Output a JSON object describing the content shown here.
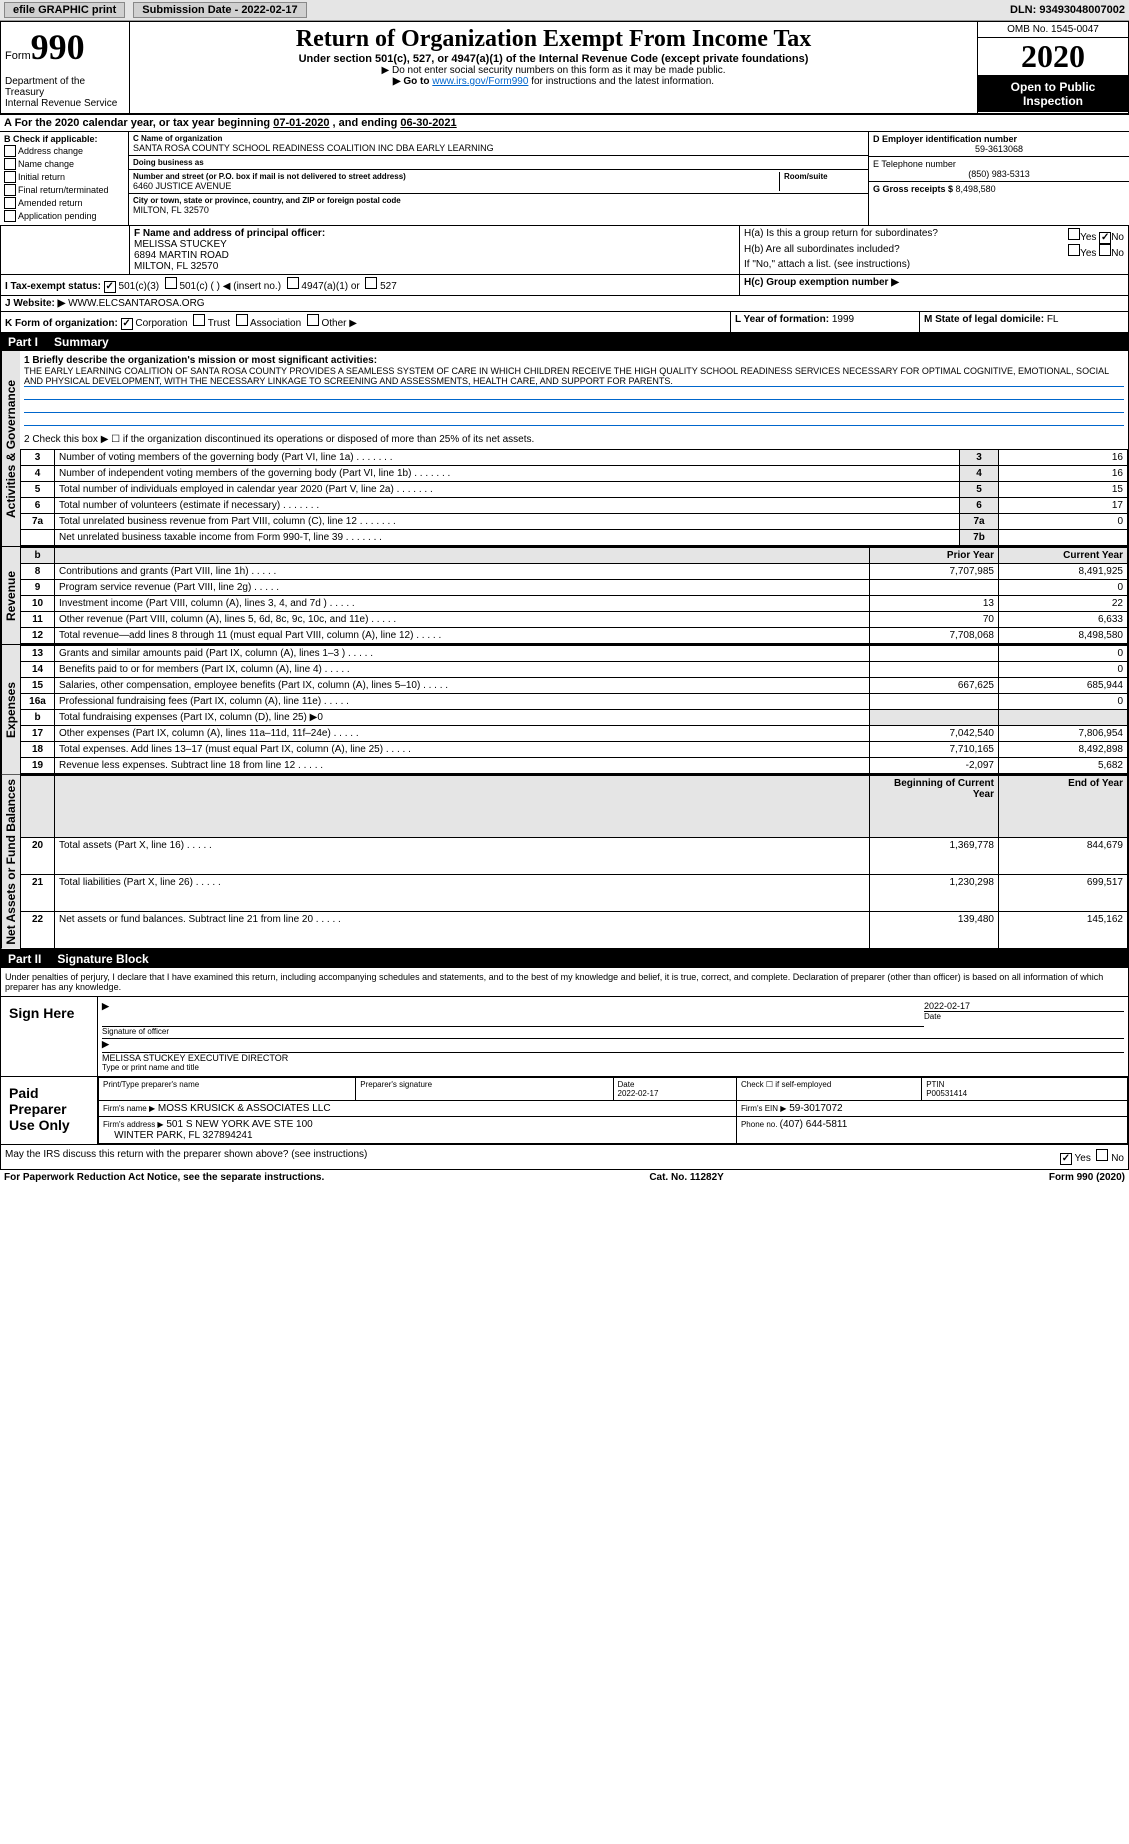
{
  "topbar": {
    "efile_label": "efile GRAPHIC print",
    "submission_label": "Submission Date - 2022-02-17",
    "dln": "DLN: 93493048007002"
  },
  "header": {
    "form_prefix": "Form",
    "form_num": "990",
    "title": "Return of Organization Exempt From Income Tax",
    "subtitle": "Under section 501(c), 527, or 4947(a)(1) of the Internal Revenue Code (except private foundations)",
    "note1": "▶ Do not enter social security numbers on this form as it may be made public.",
    "note2_pre": "▶ Go to ",
    "note2_link": "www.irs.gov/Form990",
    "note2_post": " for instructions and the latest information.",
    "dept": "Department of the Treasury\nInternal Revenue Service",
    "omb": "OMB No. 1545-0047",
    "year": "2020",
    "open_public": "Open to Public Inspection"
  },
  "period": {
    "label_a": "A For the 2020 calendar year, or tax year beginning ",
    "begin": "07-01-2020",
    "mid": " , and ending ",
    "end": "06-30-2021"
  },
  "section_b": {
    "header": "B Check if applicable:",
    "items": [
      "Address change",
      "Name change",
      "Initial return",
      "Final return/terminated",
      "Amended return",
      "Application pending"
    ]
  },
  "section_c": {
    "name_label": "C Name of organization",
    "name": "SANTA ROSA COUNTY SCHOOL READINESS COALITION INC DBA EARLY LEARNING",
    "dba_label": "Doing business as",
    "addr_label": "Number and street (or P.O. box if mail is not delivered to street address)",
    "addr": "6460 JUSTICE AVENUE",
    "room_label": "Room/suite",
    "city_label": "City or town, state or province, country, and ZIP or foreign postal code",
    "city": "MILTON, FL  32570"
  },
  "section_d": {
    "label": "D Employer identification number",
    "value": "59-3613068"
  },
  "section_e": {
    "label": "E Telephone number",
    "value": "(850) 983-5313"
  },
  "section_g": {
    "label": "G Gross receipts $ ",
    "value": "8,498,580"
  },
  "section_f": {
    "label": "F Name and address of principal officer:",
    "name": "MELISSA STUCKEY",
    "addr1": "6894 MARTIN ROAD",
    "addr2": "MILTON, FL  32570"
  },
  "section_h": {
    "ha_label": "H(a) Is this a group return for subordinates?",
    "hb_label": "H(b) Are all subordinates included?",
    "hb_note": "If \"No,\" attach a list. (see instructions)",
    "hc_label": "H(c) Group exemption number ▶",
    "yes": "Yes",
    "no": "No"
  },
  "section_i": {
    "label": "I Tax-exempt status:",
    "opts": [
      "501(c)(3)",
      "501(c) (  ) ◀ (insert no.)",
      "4947(a)(1) or",
      "527"
    ]
  },
  "section_j": {
    "label": "J Website: ▶",
    "value": "WWW.ELCSANTAROSA.ORG"
  },
  "section_k": {
    "label": "K Form of organization:",
    "opts": [
      "Corporation",
      "Trust",
      "Association",
      "Other ▶"
    ]
  },
  "section_l": {
    "label": "L Year of formation: ",
    "value": "1999"
  },
  "section_m": {
    "label": "M State of legal domicile: ",
    "value": "FL"
  },
  "part1": {
    "label": "Part I",
    "title": "Summary",
    "q1_label": "1 Briefly describe the organization's mission or most significant activities:",
    "mission": "THE EARLY LEARNING COALITION OF SANTA ROSA COUNTY PROVIDES A SEAMLESS SYSTEM OF CARE IN WHICH CHILDREN RECEIVE THE HIGH QUALITY SCHOOL READINESS SERVICES NECESSARY FOR OPTIMAL COGNITIVE, EMOTIONAL, SOCIAL AND PHYSICAL DEVELOPMENT, WITH THE NECESSARY LINKAGE TO SCREENING AND ASSESSMENTS, HEALTH CARE, AND SUPPORT FOR PARENTS.",
    "q2": "2 Check this box ▶ ☐ if the organization discontinued its operations or disposed of more than 25% of its net assets.",
    "gov_rows": [
      {
        "n": "3",
        "label": "Number of voting members of the governing body (Part VI, line 1a)",
        "key": "3",
        "val": "16"
      },
      {
        "n": "4",
        "label": "Number of independent voting members of the governing body (Part VI, line 1b)",
        "key": "4",
        "val": "16"
      },
      {
        "n": "5",
        "label": "Total number of individuals employed in calendar year 2020 (Part V, line 2a)",
        "key": "5",
        "val": "15"
      },
      {
        "n": "6",
        "label": "Total number of volunteers (estimate if necessary)",
        "key": "6",
        "val": "17"
      },
      {
        "n": "7a",
        "label": "Total unrelated business revenue from Part VIII, column (C), line 12",
        "key": "7a",
        "val": "0"
      },
      {
        "n": "",
        "label": "Net unrelated business taxable income from Form 990-T, line 39",
        "key": "7b",
        "val": ""
      }
    ],
    "col_prior": "Prior Year",
    "col_current": "Current Year",
    "rev_rows": [
      {
        "n": "8",
        "label": "Contributions and grants (Part VIII, line 1h)",
        "prior": "7,707,985",
        "curr": "8,491,925"
      },
      {
        "n": "9",
        "label": "Program service revenue (Part VIII, line 2g)",
        "prior": "",
        "curr": "0"
      },
      {
        "n": "10",
        "label": "Investment income (Part VIII, column (A), lines 3, 4, and 7d )",
        "prior": "13",
        "curr": "22"
      },
      {
        "n": "11",
        "label": "Other revenue (Part VIII, column (A), lines 5, 6d, 8c, 9c, 10c, and 11e)",
        "prior": "70",
        "curr": "6,633"
      },
      {
        "n": "12",
        "label": "Total revenue—add lines 8 through 11 (must equal Part VIII, column (A), line 12)",
        "prior": "7,708,068",
        "curr": "8,498,580"
      }
    ],
    "exp_rows": [
      {
        "n": "13",
        "label": "Grants and similar amounts paid (Part IX, column (A), lines 1–3 )",
        "prior": "",
        "curr": "0"
      },
      {
        "n": "14",
        "label": "Benefits paid to or for members (Part IX, column (A), line 4)",
        "prior": "",
        "curr": "0"
      },
      {
        "n": "15",
        "label": "Salaries, other compensation, employee benefits (Part IX, column (A), lines 5–10)",
        "prior": "667,625",
        "curr": "685,944"
      },
      {
        "n": "16a",
        "label": "Professional fundraising fees (Part IX, column (A), line 11e)",
        "prior": "",
        "curr": "0"
      },
      {
        "n": "b",
        "label": "Total fundraising expenses (Part IX, column (D), line 25) ▶0",
        "prior": "",
        "curr": ""
      },
      {
        "n": "17",
        "label": "Other expenses (Part IX, column (A), lines 11a–11d, 11f–24e)",
        "prior": "7,042,540",
        "curr": "7,806,954"
      },
      {
        "n": "18",
        "label": "Total expenses. Add lines 13–17 (must equal Part IX, column (A), line 25)",
        "prior": "7,710,165",
        "curr": "8,492,898"
      },
      {
        "n": "19",
        "label": "Revenue less expenses. Subtract line 18 from line 12",
        "prior": "-2,097",
        "curr": "5,682"
      }
    ],
    "col_begin": "Beginning of Current Year",
    "col_end": "End of Year",
    "net_rows": [
      {
        "n": "20",
        "label": "Total assets (Part X, line 16)",
        "prior": "1,369,778",
        "curr": "844,679"
      },
      {
        "n": "21",
        "label": "Total liabilities (Part X, line 26)",
        "prior": "1,230,298",
        "curr": "699,517"
      },
      {
        "n": "22",
        "label": "Net assets or fund balances. Subtract line 21 from line 20",
        "prior": "139,480",
        "curr": "145,162"
      }
    ],
    "side_gov": "Activities & Governance",
    "side_rev": "Revenue",
    "side_exp": "Expenses",
    "side_net": "Net Assets or Fund Balances"
  },
  "part2": {
    "label": "Part II",
    "title": "Signature Block",
    "declaration": "Under penalties of perjury, I declare that I have examined this return, including accompanying schedules and statements, and to the best of my knowledge and belief, it is true, correct, and complete. Declaration of preparer (other than officer) is based on all information of which preparer has any knowledge.",
    "sign_here": "Sign Here",
    "sig_officer": "Signature of officer",
    "sig_date": "2022-02-17",
    "date_label": "Date",
    "officer_name": "MELISSA STUCKEY EXECUTIVE DIRECTOR",
    "type_label": "Type or print name and title",
    "paid_label": "Paid Preparer Use Only",
    "prep_name_label": "Print/Type preparer's name",
    "prep_sig_label": "Preparer's signature",
    "prep_date": "2022-02-17",
    "check_self": "Check ☐ if self-employed",
    "ptin_label": "PTIN",
    "ptin": "P00531414",
    "firm_name_label": "Firm's name ▶",
    "firm_name": "MOSS KRUSICK & ASSOCIATES LLC",
    "firm_ein_label": "Firm's EIN ▶",
    "firm_ein": "59-3017072",
    "firm_addr_label": "Firm's address ▶",
    "firm_addr": "501 S NEW YORK AVE STE 100",
    "firm_city": "WINTER PARK, FL  327894241",
    "phone_label": "Phone no. ",
    "phone": "(407) 644-5811",
    "discuss": "May the IRS discuss this return with the preparer shown above? (see instructions)"
  },
  "footer": {
    "left": "For Paperwork Reduction Act Notice, see the separate instructions.",
    "center": "Cat. No. 11282Y",
    "right": "Form 990 (2020)"
  }
}
